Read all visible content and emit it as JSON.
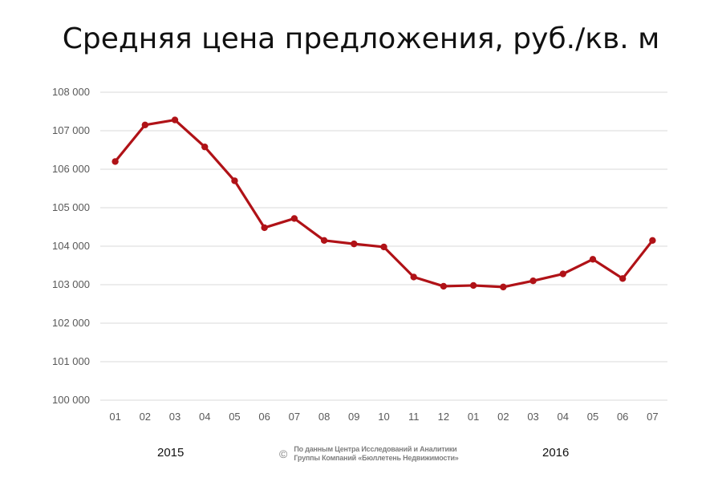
{
  "title": "Средняя цена предложения, руб./кв. м",
  "year_left": "2015",
  "year_right": "2016",
  "footer": {
    "copyright": "©",
    "line1": "По данным Центра Исследований и Аналитики",
    "line2": "Группы Компаний «Бюллетень Недвижимости»"
  },
  "colors": {
    "line": "#b01217",
    "grid": "#d9d9d9"
  },
  "chart_data": {
    "type": "line",
    "title": "Средняя цена предложения, руб./кв. м",
    "xlabel": "",
    "ylabel": "",
    "categories": [
      "01",
      "02",
      "03",
      "04",
      "05",
      "06",
      "07",
      "08",
      "09",
      "10",
      "11",
      "12",
      "01",
      "02",
      "03",
      "04",
      "05",
      "06",
      "07"
    ],
    "series": [
      {
        "values": [
          106200,
          107150,
          107280,
          106580,
          105700,
          104480,
          104720,
          104150,
          104060,
          103980,
          103200,
          102960,
          102980,
          102940,
          103100,
          103280,
          103660,
          103160,
          104150
        ]
      }
    ],
    "ylim": [
      100000,
      108000
    ],
    "yticks": [
      "100 000",
      "101 000",
      "102 000",
      "103 000",
      "104 000",
      "105 000",
      "106 000",
      "107 000",
      "108 000"
    ],
    "grid": true,
    "legend": "none"
  }
}
